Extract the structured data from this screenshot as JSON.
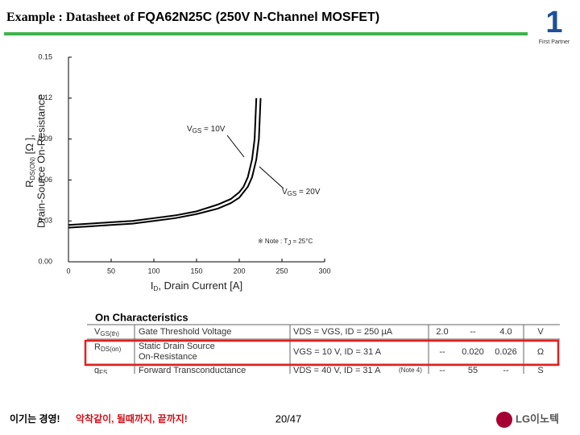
{
  "header": {
    "title_prefix": "Example : Datasheet of ",
    "title_main": "FQA62N25C (250V N-Channel MOSFET)",
    "logo_text": "First Partner"
  },
  "chart_data": {
    "type": "line",
    "ylabel": {
      "symbol": "R",
      "sub": "DS(ON)",
      "unit": "[Ω ],",
      "text": "Drain-Source On-Resistance"
    },
    "xlabel": {
      "symbol": "I",
      "sub": "D",
      "text": ", Drain Current [A]"
    },
    "xlim": [
      0,
      300
    ],
    "xticks": [
      0,
      50,
      100,
      150,
      200,
      250,
      300
    ],
    "ylim": [
      0,
      0.15
    ],
    "yticks": [
      {
        "value": 0,
        "label": "0.00"
      },
      0.03,
      0.06,
      0.09,
      0.12,
      0.15
    ],
    "series": [
      {
        "name": "VGS = 10V",
        "color": "#000000",
        "x": [
          0,
          25,
          50,
          75,
          100,
          125,
          150,
          175,
          190,
          200,
          205,
          210,
          215,
          218,
          220
        ],
        "values": [
          0.027,
          0.028,
          0.029,
          0.03,
          0.032,
          0.034,
          0.037,
          0.042,
          0.046,
          0.051,
          0.055,
          0.062,
          0.075,
          0.09,
          0.12
        ]
      },
      {
        "name": "VGS = 20V",
        "color": "#000000",
        "x": [
          0,
          25,
          50,
          75,
          100,
          125,
          150,
          175,
          190,
          200,
          210,
          215,
          220,
          223,
          225
        ],
        "values": [
          0.025,
          0.026,
          0.027,
          0.028,
          0.03,
          0.032,
          0.035,
          0.039,
          0.043,
          0.047,
          0.055,
          0.062,
          0.075,
          0.09,
          0.12
        ]
      }
    ],
    "annotations": [
      {
        "main": "V",
        "sub": "GS",
        "rest": " = 10V"
      },
      {
        "main": "V",
        "sub": "GS",
        "rest": " = 20V"
      },
      {
        "main": "※ Note : T",
        "sub": "J",
        "rest": " = 25°C"
      }
    ]
  },
  "table": {
    "heading": "On Characteristics",
    "rows": [
      [
        {
          "main": "V",
          "sub": "GS(th)"
        },
        "Gate Threshold Voltage",
        "VDS = VGS, ID = 250 µA",
        "2.0",
        "--",
        "4.0",
        "V"
      ],
      [
        {
          "main": "R",
          "sub": "DS(on)"
        },
        "Static Drain Source",
        "On-Resistance",
        "VGS = 10 V, ID = 31 A",
        "--",
        "0.020",
        "0.026",
        "Ω"
      ],
      [
        {
          "main": "g",
          "sub": "FS"
        },
        "Forward Transconductance",
        "VDS = 40 V, ID = 31 A",
        "(Note 4)",
        "--",
        "55",
        "--",
        "S"
      ]
    ]
  },
  "footer": {
    "slogan1": "이기는 경영!",
    "slogan2": "악착같이, 될때까지, 끝까지!",
    "page": "20/47",
    "logo": "LG이노텍"
  }
}
